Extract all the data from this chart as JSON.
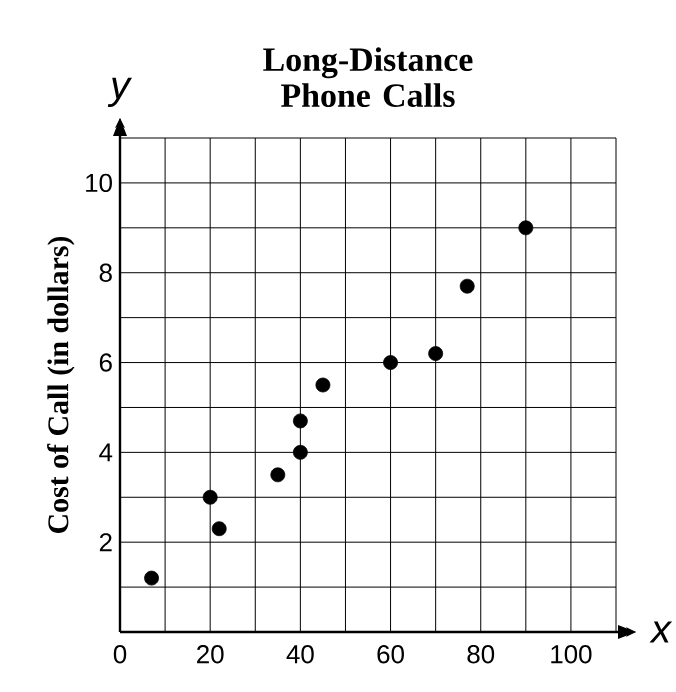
{
  "chart_data": {
    "type": "scatter",
    "title": "Long-Distance Phone Calls",
    "xlabel": "x",
    "ylabel": "Cost of Call (in dollars)",
    "annotations": [
      "y"
    ],
    "x": [
      7,
      20,
      22,
      35,
      40,
      40,
      45,
      60,
      70,
      77,
      90
    ],
    "values": [
      1.2,
      3.0,
      2.3,
      3.5,
      4.0,
      4.7,
      5.5,
      6.0,
      6.2,
      7.7,
      9.0
    ],
    "color": "#000000",
    "marker": "circle",
    "grid": true,
    "xlim": [
      0,
      110
    ],
    "ylim": [
      0,
      11
    ],
    "xticks": [
      {
        "value": 0,
        "label": "0"
      },
      {
        "value": 10,
        "label": null
      },
      20,
      {
        "value": 30,
        "label": null
      },
      40,
      {
        "value": 50,
        "label": null
      },
      60,
      {
        "value": 70,
        "label": null
      },
      80,
      {
        "value": 90,
        "label": null
      },
      100,
      {
        "value": 110,
        "label": null
      }
    ],
    "yticks": [
      {
        "value": 0,
        "label": null
      },
      {
        "value": 1,
        "label": null
      },
      2,
      {
        "value": 3,
        "label": null
      },
      4,
      {
        "value": 5,
        "label": null
      },
      6,
      {
        "value": 7,
        "label": null
      },
      8,
      {
        "value": 9,
        "label": null
      },
      10,
      {
        "value": 11,
        "label": null
      }
    ]
  }
}
